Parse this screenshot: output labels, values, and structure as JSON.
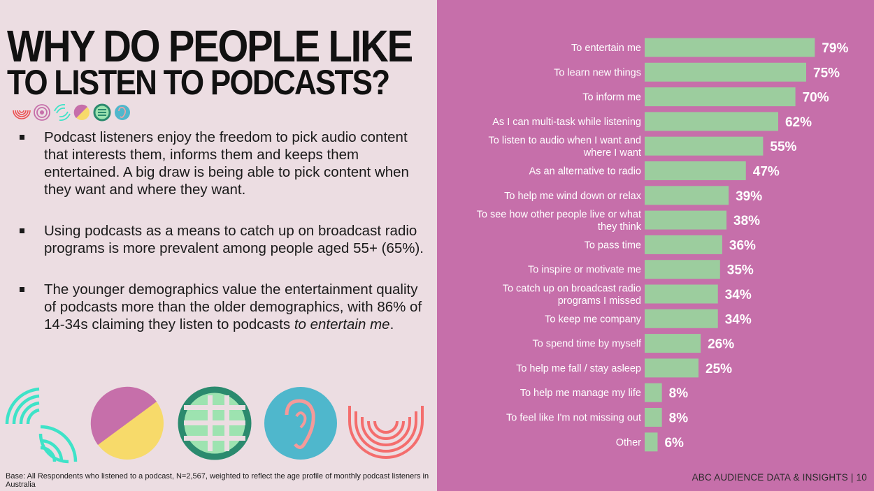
{
  "title": {
    "line1": "WHY DO PEOPLE LIKE",
    "line2": "TO LISTEN TO PODCASTS?"
  },
  "bullets": [
    {
      "text": "Podcast listeners enjoy the freedom to pick audio content that interests them, informs them and keeps them entertained. A big draw is being able to pick content when they want and where they want."
    },
    {
      "text": "Using podcasts as a means to catch up on broadcast radio programs is more prevalent among people aged 55+ (65%)."
    },
    {
      "text_before": "The younger demographics value the entertainment quality of podcasts more than the older demographics, with 86% of 14-34s claiming they listen to podcasts ",
      "text_italic": "to entertain me",
      "text_after": "."
    }
  ],
  "base_note": "Base: All Respondents who listened to a podcast, N=2,567, weighted to reflect the age profile of monthly podcast listeners in Australia",
  "footer": "ABC AUDIENCE DATA & INSIGHTS | 10",
  "colors": {
    "left_background": "#ecdde2",
    "right_background": "#c66faa",
    "bar": "#9ccd9e",
    "label_text": "#ffffff",
    "icon_mint": "#3ee3c8",
    "icon_pink": "#c66faa",
    "icon_yellow": "#f7da6a",
    "icon_green": "#2b8a6e",
    "icon_lightgreen": "#9de3b0",
    "icon_blue": "#4fb7cc",
    "icon_coral": "#f46d6d",
    "icon_red": "#ec5050"
  },
  "icons": [
    "broadcast-arcs-icon",
    "target-rings-icon",
    "waves-icon",
    "pie-half-icon",
    "grid-circle-icon",
    "ear-icon"
  ],
  "chart_data": {
    "type": "bar",
    "orientation": "horizontal",
    "categories": [
      "To entertain me",
      "To learn new things",
      "To inform me",
      "As I can multi-task while listening",
      "To listen to audio when I want and where I want",
      "As an alternative to radio",
      "To help me wind down or relax",
      "To see how other people live or what they think",
      "To pass time",
      "To inspire or motivate me",
      "To catch up on broadcast radio programs I missed",
      "To keep me company",
      "To spend time by myself",
      "To help me fall / stay asleep",
      "To help me manage my life",
      "To feel like I'm not missing out",
      "Other"
    ],
    "category_lines": [
      [
        "To entertain me"
      ],
      [
        "To learn new things"
      ],
      [
        "To inform me"
      ],
      [
        "As I can multi-task while listening"
      ],
      [
        "To listen to audio when I want and",
        "where I want"
      ],
      [
        "As an alternative to radio"
      ],
      [
        "To help me wind down or relax"
      ],
      [
        "To see how other people live or what",
        "they think"
      ],
      [
        "To pass time"
      ],
      [
        "To inspire or motivate me"
      ],
      [
        "To catch up on broadcast radio",
        "programs I missed"
      ],
      [
        "To keep me company"
      ],
      [
        "To spend time by myself"
      ],
      [
        "To help me fall / stay asleep"
      ],
      [
        "To help me manage my life"
      ],
      [
        "To feel like I'm not missing out"
      ],
      [
        "Other"
      ]
    ],
    "values": [
      79,
      75,
      70,
      62,
      55,
      47,
      39,
      38,
      36,
      35,
      34,
      34,
      26,
      25,
      8,
      8,
      6
    ],
    "value_labels": [
      "79%",
      "75%",
      "70%",
      "62%",
      "55%",
      "47%",
      "39%",
      "38%",
      "36%",
      "35%",
      "34%",
      "34%",
      "26%",
      "25%",
      "8%",
      "8%",
      "6%"
    ],
    "xlim": [
      0,
      100
    ],
    "grid": false,
    "legend": "none"
  }
}
